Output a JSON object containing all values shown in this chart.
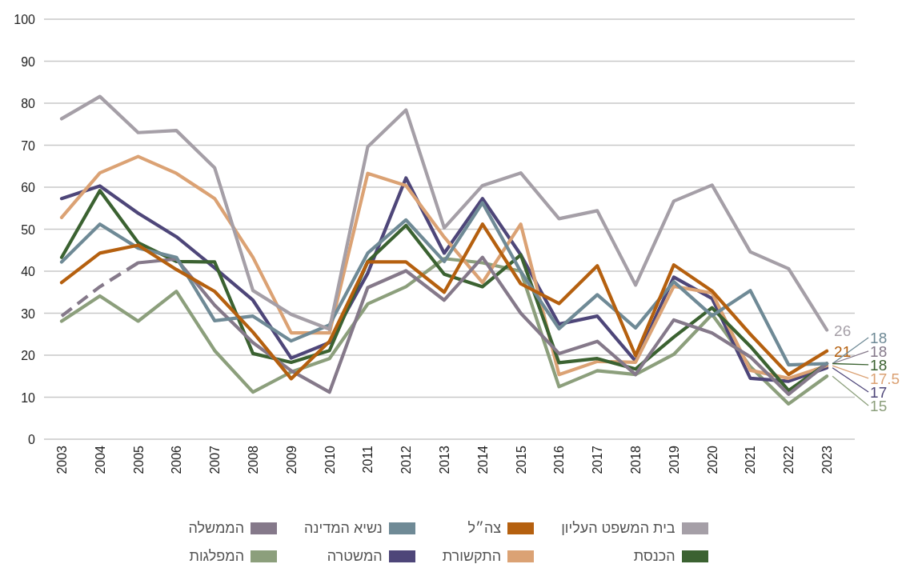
{
  "chart_data": {
    "type": "line",
    "categories": [
      "2003",
      "2004",
      "2005",
      "2006",
      "2007",
      "2008",
      "2009",
      "2010",
      "2011",
      "2012",
      "2013",
      "2014",
      "2015",
      "2016",
      "2017",
      "2018",
      "2019",
      "2020",
      "2021",
      "2022",
      "2023"
    ],
    "ylim": [
      0,
      100
    ],
    "yticks": [
      0,
      10,
      20,
      30,
      40,
      50,
      60,
      70,
      80,
      90,
      100
    ],
    "grid": "y",
    "legend": "bottom",
    "marker": "none",
    "line_style": "solid",
    "series": [
      {
        "name": "בית המשפט העליון",
        "color": "#a59fa7",
        "values": [
          76.3,
          81.6,
          73,
          73.5,
          64.6,
          35.4,
          29.7,
          26.2,
          69.6,
          78.4,
          50.3,
          60.4,
          63.4,
          52.5,
          54.4,
          36.7,
          56.7,
          60.5,
          44.6,
          40.6,
          26
        ],
        "value_labels": [
          null,
          null,
          null,
          null,
          null,
          null,
          null,
          null,
          null,
          null,
          null,
          null,
          null,
          null,
          null,
          null,
          null,
          null,
          null,
          null,
          "26"
        ]
      },
      {
        "name": "צה״ל",
        "color": "#b5600f",
        "values": [
          37.3,
          44.3,
          46.2,
          40.4,
          35.2,
          25.5,
          14.4,
          23.3,
          42.2,
          42.2,
          35,
          51.2,
          37,
          32.3,
          41.3,
          19.9,
          41.5,
          35.3,
          25,
          15.4,
          21
        ],
        "value_labels": [
          null,
          null,
          null,
          null,
          null,
          null,
          null,
          null,
          null,
          null,
          null,
          null,
          null,
          null,
          null,
          null,
          null,
          null,
          null,
          null,
          "21"
        ]
      },
      {
        "name": "נשיא המדינה",
        "color": "#6f8a96",
        "values": [
          42.2,
          51.2,
          45.5,
          43.3,
          28.2,
          29.3,
          23.4,
          27.2,
          44.3,
          52.2,
          42.3,
          56.3,
          39.9,
          26.3,
          34.4,
          26.5,
          37.5,
          29.4,
          35.4,
          17.7,
          18
        ],
        "value_labels": [
          null,
          null,
          null,
          null,
          null,
          null,
          null,
          null,
          null,
          null,
          null,
          null,
          null,
          null,
          null,
          null,
          null,
          null,
          null,
          null,
          "18"
        ]
      },
      {
        "name": "הממשלה",
        "color": "#85798a",
        "values": [
          null,
          null,
          42,
          42.9,
          31.9,
          23,
          16.3,
          11.2,
          36.1,
          40.1,
          33.1,
          43.3,
          30,
          20.4,
          23.3,
          15.4,
          28.4,
          25.3,
          19.6,
          10.7,
          18
        ],
        "value_labels": [
          null,
          null,
          null,
          null,
          null,
          null,
          null,
          null,
          null,
          null,
          null,
          null,
          null,
          null,
          null,
          null,
          null,
          null,
          null,
          null,
          "18"
        ]
      },
      {
        "color": "#85798a",
        "line_style": "dashed",
        "values": [
          29.3,
          36.3,
          42,
          null,
          null,
          null,
          null,
          null,
          null,
          null,
          null,
          null,
          null,
          null,
          null,
          null,
          null,
          null,
          null,
          null,
          null
        ]
      },
      {
        "name": "הכנסת",
        "color": "#3b6231",
        "values": [
          43.3,
          59.2,
          46.8,
          42.3,
          42.2,
          20.4,
          18.3,
          21.1,
          42.3,
          50.9,
          39.3,
          36.3,
          43.9,
          18.2,
          19.2,
          16.7,
          24.3,
          31.3,
          22.1,
          11.6,
          18
        ],
        "value_labels": [
          null,
          null,
          null,
          null,
          null,
          null,
          null,
          null,
          null,
          null,
          null,
          null,
          null,
          null,
          null,
          null,
          null,
          null,
          null,
          null,
          "18"
        ]
      },
      {
        "name": "התקשורת",
        "color": "#dba274",
        "values": [
          52.8,
          63.4,
          67.3,
          63.3,
          57.3,
          43.3,
          25.3,
          25.3,
          63.3,
          60.4,
          48.1,
          37.3,
          51.2,
          15.4,
          18.5,
          18.3,
          36.4,
          34.8,
          16.4,
          14.5,
          17.5
        ],
        "value_labels": [
          null,
          null,
          null,
          null,
          null,
          null,
          null,
          null,
          null,
          null,
          null,
          null,
          null,
          null,
          null,
          null,
          null,
          null,
          null,
          null,
          "17.5"
        ]
      },
      {
        "name": "המשטרה",
        "color": "#4e4679",
        "values": [
          57.3,
          60.3,
          53.8,
          48.2,
          40.8,
          33.1,
          19.3,
          23,
          39.5,
          62.2,
          44.3,
          57.3,
          43.9,
          27.4,
          29.3,
          18.6,
          38.6,
          33.5,
          14.5,
          13.8,
          17
        ],
        "value_labels": [
          null,
          null,
          null,
          null,
          null,
          null,
          null,
          null,
          null,
          null,
          null,
          null,
          null,
          null,
          null,
          null,
          null,
          null,
          null,
          null,
          "17"
        ]
      },
      {
        "name": "המפלגות",
        "color": "#8c9f7c",
        "values": [
          28.1,
          34.1,
          28.1,
          35.2,
          21.1,
          11.2,
          16,
          19.2,
          32.2,
          36.3,
          43,
          42,
          40,
          12.5,
          16.3,
          15.4,
          20.2,
          29.7,
          17.3,
          8.4,
          15
        ],
        "value_labels": [
          null,
          null,
          null,
          null,
          null,
          null,
          null,
          null,
          null,
          null,
          null,
          null,
          null,
          null,
          null,
          null,
          null,
          null,
          null,
          null,
          "15"
        ]
      }
    ]
  }
}
